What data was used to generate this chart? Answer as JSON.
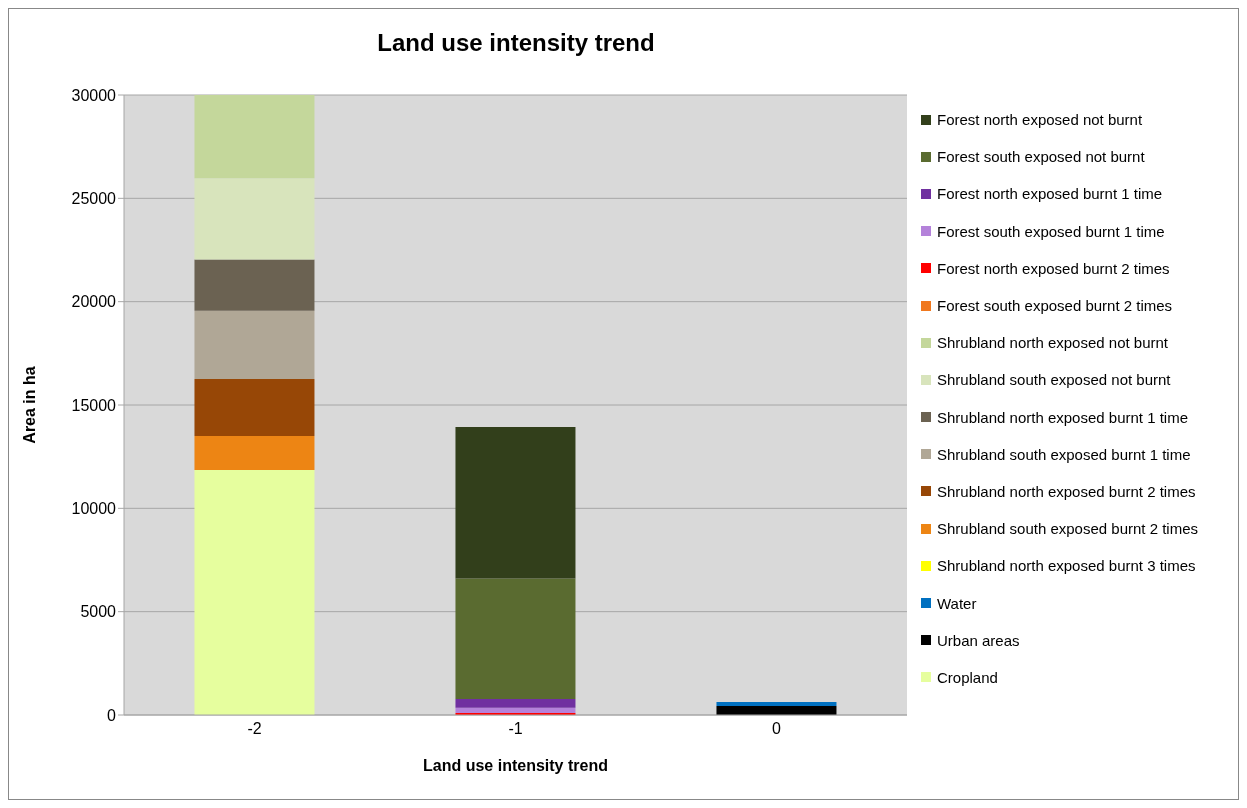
{
  "chart_data": {
    "type": "bar",
    "title": "Land use intensity trend",
    "xlabel": "Land use intensity trend",
    "ylabel": "Area in ha",
    "categories": [
      "-2",
      "-1",
      "0"
    ],
    "stacked": true,
    "ylim": [
      0,
      30000
    ],
    "yticks": [
      0,
      5000,
      10000,
      15000,
      20000,
      25000,
      30000
    ],
    "grid": "y",
    "legend": "right",
    "series": [
      {
        "name": "Cropland",
        "color": "#e6fe9e",
        "values": [
          11850,
          null,
          null
        ]
      },
      {
        "name": "Urban areas",
        "color": "#000000",
        "values": [
          null,
          null,
          440
        ]
      },
      {
        "name": "Water",
        "color": "#0070c0",
        "values": [
          null,
          null,
          190
        ]
      },
      {
        "name": "Shrubland north exposed burnt 3 times",
        "color": "#ffff00",
        "values": [
          null,
          null,
          null
        ]
      },
      {
        "name": "Shrubland south exposed burnt 2 times",
        "color": "#ed8514",
        "values": [
          1650,
          null,
          null
        ]
      },
      {
        "name": "Shrubland north exposed burnt 2 times",
        "color": "#974706",
        "values": [
          2760,
          null,
          null
        ]
      },
      {
        "name": "Shrubland south exposed burnt 1 time",
        "color": "#b0a796",
        "values": [
          3300,
          null,
          null
        ]
      },
      {
        "name": "Shrubland north exposed burnt 1 time",
        "color": "#6b6252",
        "values": [
          2480,
          null,
          null
        ]
      },
      {
        "name": "Shrubland south exposed not burnt",
        "color": "#d8e4bc",
        "values": [
          3930,
          null,
          null
        ]
      },
      {
        "name": "Shrubland north exposed not burnt",
        "color": "#c4d79b",
        "values": [
          4030,
          null,
          null
        ]
      },
      {
        "name": "Forest south exposed burnt 2 times",
        "color": "#f0781e",
        "values": [
          null,
          null,
          null
        ]
      },
      {
        "name": "Forest north exposed burnt 2 times",
        "color": "#ff0000",
        "values": [
          null,
          100,
          null
        ]
      },
      {
        "name": "Forest south exposed burnt 1 time",
        "color": "#b482da",
        "values": [
          null,
          250,
          null
        ]
      },
      {
        "name": "Forest north exposed burnt 1 time",
        "color": "#7030a0",
        "values": [
          null,
          430,
          null
        ]
      },
      {
        "name": "Forest south exposed not burnt",
        "color": "#5a6b30",
        "values": [
          null,
          5820,
          null
        ]
      },
      {
        "name": "Forest north exposed not burnt",
        "color": "#323f1b",
        "values": [
          null,
          7330,
          null
        ]
      }
    ]
  }
}
